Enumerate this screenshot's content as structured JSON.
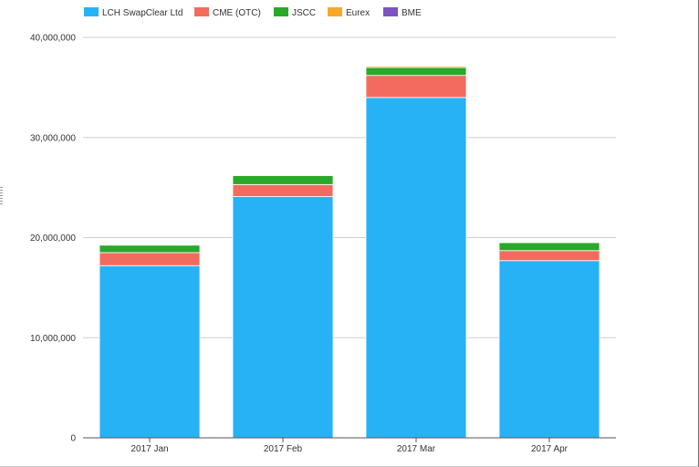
{
  "colors": {
    "lch": "#27b2f5",
    "cme": "#f26b5e",
    "jscc": "#2aa82a",
    "eurex": "#f7a82a",
    "bme": "#7b54c2",
    "grid": "#cfcfcf",
    "axis": "#555555",
    "text": "#333333"
  },
  "chart_data": {
    "type": "bar",
    "stacked": true,
    "categories": [
      "2017 Jan",
      "2017 Feb",
      "2017 Mar",
      "2017 Apr"
    ],
    "series": [
      {
        "name": "LCH SwapClear Ltd",
        "color": "#27b2f5",
        "values": [
          17200000,
          24100000,
          34000000,
          17700000
        ]
      },
      {
        "name": "CME (OTC)",
        "color": "#f26b5e",
        "values": [
          1300000,
          1200000,
          2200000,
          1000000
        ]
      },
      {
        "name": "JSCC",
        "color": "#2aa82a",
        "values": [
          750000,
          900000,
          800000,
          800000
        ]
      },
      {
        "name": "Eurex",
        "color": "#f7a82a",
        "values": [
          50000,
          50000,
          150000,
          50000
        ]
      },
      {
        "name": "BME",
        "color": "#7b54c2",
        "values": [
          10000,
          10000,
          20000,
          10000
        ]
      }
    ],
    "yticks": [
      "0",
      "10,000,000",
      "20,000,000",
      "30,000,000",
      "40,000,000"
    ],
    "ylim": [
      0,
      40000000
    ],
    "grid": true,
    "legend": "top-left"
  }
}
